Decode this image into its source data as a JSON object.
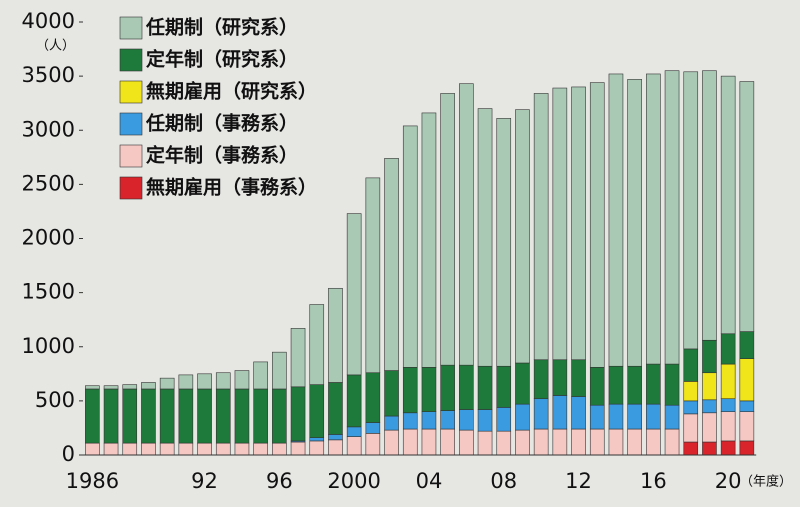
{
  "chart_data": {
    "type": "stacked_bar",
    "y_unit": "（人）",
    "x_unit": "（年度）",
    "categories": [
      "1986",
      null,
      null,
      null,
      null,
      null,
      "92",
      null,
      null,
      null,
      "96",
      null,
      null,
      null,
      "2000",
      null,
      null,
      null,
      "04",
      null,
      null,
      null,
      "08",
      null,
      null,
      null,
      "12",
      null,
      null,
      null,
      "16",
      null,
      null,
      null,
      "20",
      null
    ],
    "series": [
      {
        "name": "任期制（研究系）",
        "color": "#a9c9b4",
        "values": [
          30,
          30,
          40,
          60,
          100,
          130,
          140,
          150,
          170,
          250,
          340,
          540,
          740,
          870,
          1490,
          1800,
          1960,
          2230,
          2350,
          2510,
          2600,
          2380,
          2290,
          2340,
          2460,
          2510,
          2520,
          2630,
          2700,
          2650,
          2680,
          2710,
          2560,
          2490,
          2380,
          2310
        ]
      },
      {
        "name": "定年制（研究系）",
        "color": "#1e7a3a",
        "values": [
          500,
          500,
          500,
          500,
          500,
          500,
          500,
          500,
          500,
          500,
          500,
          500,
          490,
          480,
          480,
          460,
          420,
          420,
          410,
          420,
          410,
          400,
          380,
          380,
          360,
          330,
          340,
          350,
          350,
          350,
          370,
          380,
          300,
          300,
          280,
          250
        ]
      },
      {
        "name": "無期雇用（研究系）",
        "color": "#f0e41a",
        "values": [
          0,
          0,
          0,
          0,
          0,
          0,
          0,
          0,
          0,
          0,
          0,
          0,
          0,
          0,
          0,
          0,
          0,
          0,
          0,
          0,
          0,
          0,
          0,
          0,
          0,
          0,
          0,
          0,
          0,
          0,
          0,
          0,
          180,
          250,
          320,
          390
        ]
      },
      {
        "name": "任期制（事務系）",
        "color": "#3a9be0",
        "values": [
          0,
          0,
          0,
          0,
          0,
          0,
          0,
          0,
          0,
          0,
          0,
          10,
          30,
          50,
          90,
          100,
          130,
          150,
          160,
          170,
          190,
          200,
          220,
          240,
          280,
          310,
          300,
          220,
          230,
          230,
          230,
          220,
          120,
          120,
          120,
          100
        ]
      },
      {
        "name": "定年制（事務系）",
        "color": "#f5c8c4",
        "values": [
          110,
          110,
          110,
          110,
          110,
          110,
          110,
          110,
          110,
          110,
          110,
          120,
          130,
          140,
          170,
          200,
          230,
          240,
          240,
          240,
          230,
          220,
          220,
          230,
          240,
          240,
          240,
          240,
          240,
          240,
          240,
          240,
          260,
          270,
          270,
          270
        ]
      },
      {
        "name": "無期雇用（事務系）",
        "color": "#d8242a",
        "values": [
          0,
          0,
          0,
          0,
          0,
          0,
          0,
          0,
          0,
          0,
          0,
          0,
          0,
          0,
          0,
          0,
          0,
          0,
          0,
          0,
          0,
          0,
          0,
          0,
          0,
          0,
          0,
          0,
          0,
          0,
          0,
          0,
          120,
          120,
          130,
          130
        ]
      }
    ],
    "ylim": [
      0,
      4000
    ],
    "yticks": [
      0,
      500,
      1000,
      1500,
      2000,
      2500,
      3000,
      3500,
      4000
    ],
    "legend": "upper left"
  }
}
